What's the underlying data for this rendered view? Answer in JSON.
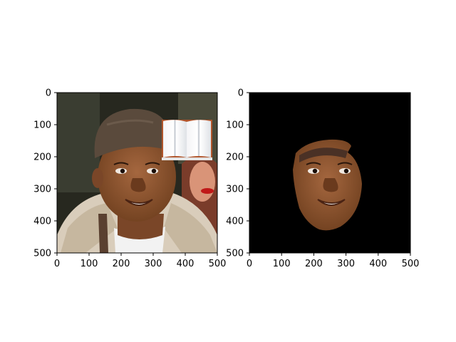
{
  "chart_data": [
    {
      "type": "image",
      "title": "",
      "content": "photo",
      "xlim": [
        0,
        500
      ],
      "ylim": [
        500,
        0
      ],
      "xticks": [
        0,
        100,
        200,
        300,
        400,
        500
      ],
      "yticks": [
        0,
        100,
        200,
        300,
        400,
        500
      ],
      "xtick_labels": [
        "0",
        "100",
        "200",
        "300",
        "400",
        "500"
      ],
      "ytick_labels": [
        "0",
        "100",
        "200",
        "300",
        "400",
        "500"
      ]
    },
    {
      "type": "image",
      "title": "",
      "content": "face-mask",
      "background": "#000000",
      "xlim": [
        0,
        500
      ],
      "ylim": [
        500,
        0
      ],
      "xticks": [
        0,
        100,
        200,
        300,
        400,
        500
      ],
      "yticks": [
        0,
        100,
        200,
        300,
        400,
        500
      ],
      "xtick_labels": [
        "0",
        "100",
        "200",
        "300",
        "400",
        "500"
      ],
      "ytick_labels": [
        "0",
        "100",
        "200",
        "300",
        "400",
        "500"
      ]
    }
  ],
  "colors": {
    "skin": "#8a5232",
    "skin_light": "#a5673f",
    "hat": "#5a4a3c",
    "jacket": "#d9cdbb",
    "shirt": "#f2f2f2",
    "background_dark": "#27281f",
    "mask_bg": "#000000"
  }
}
